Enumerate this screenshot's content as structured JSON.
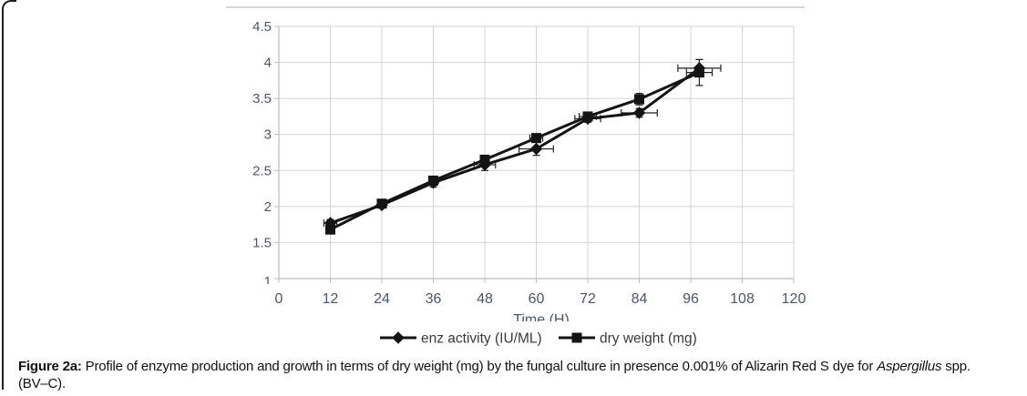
{
  "figure": {
    "caption": {
      "label": "Figure 2a:",
      "body": " Profile of enzyme production and growth in terms of dry weight (mg) by the  fungal culture in presence 0.001% of Alizarin Red S dye for ",
      "species": "Aspergillus",
      "tail": " spp.",
      "line2": "(BV–C)."
    }
  },
  "colors": {
    "series_line": "#141414",
    "gridline": "#d4d4d4",
    "axis_line": "#bdbdbd",
    "tick_label": "#4d5668",
    "axis_title": "#4d5668",
    "legend_text": "#3a3a3a",
    "top_rule": "#c9c9c9",
    "page_rule": "#1e1e1e"
  },
  "chart_data": {
    "type": "line",
    "title": "",
    "xlabel": "Time (H)",
    "ylabel": "",
    "xlim": [
      0,
      120
    ],
    "ylim": [
      1,
      4.5
    ],
    "x_ticks": [
      0,
      12,
      24,
      36,
      48,
      60,
      72,
      84,
      96,
      108,
      120
    ],
    "y_ticks": [
      4.5,
      4,
      3.5,
      3,
      2.5,
      2,
      1.5,
      1
    ],
    "grid": true,
    "legend_position": "bottom",
    "x": [
      12,
      24,
      36,
      48,
      60,
      72,
      84,
      98
    ],
    "series": [
      {
        "name": "enz activity (IU/ML)",
        "marker": "diamond",
        "values": [
          1.77,
          2.02,
          2.33,
          2.58,
          2.8,
          3.22,
          3.3,
          3.92
        ],
        "x_err": [
          1.5,
          0,
          0,
          2.5,
          4,
          3,
          4.2,
          5
        ],
        "y_err": [
          0.05,
          0.03,
          0.06,
          0.08,
          0.09,
          0.05,
          0.06,
          0.12
        ]
      },
      {
        "name": "dry weight (mg)",
        "marker": "square",
        "values": [
          1.68,
          2.04,
          2.36,
          2.65,
          2.95,
          3.25,
          3.49,
          3.86
        ],
        "x_err": [
          0,
          0,
          0,
          0,
          1.5,
          2,
          0,
          3
        ],
        "y_err": [
          0.05,
          0.03,
          0.05,
          0.06,
          0.06,
          0.05,
          0.08,
          0.18
        ]
      }
    ]
  }
}
